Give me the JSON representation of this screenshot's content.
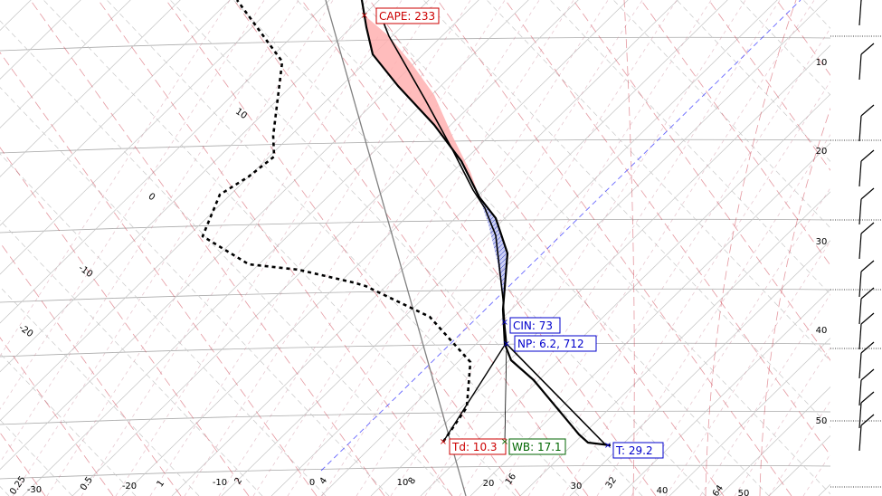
{
  "chart_data": {
    "type": "line",
    "chart_kind": "skew-T log-P diagram",
    "grid": true,
    "bottom_labels": [
      {
        "text": "-30",
        "value": -30
      },
      {
        "text": "-20",
        "value": -20
      },
      {
        "text": "-10",
        "value": -10
      },
      {
        "text": "0",
        "value": 0
      },
      {
        "text": "10",
        "value": 10
      },
      {
        "text": "20",
        "value": 20
      },
      {
        "text": "30",
        "value": 30
      },
      {
        "text": "40",
        "value": 40
      },
      {
        "text": "50",
        "value": 50
      }
    ],
    "mixing_ratio_labels": [
      "0.25",
      "0.5",
      "1",
      "2",
      "4",
      "8",
      "16",
      "32",
      "64"
    ],
    "isotherm_labels": [
      {
        "text": "10",
        "value": 10
      },
      {
        "text": "0",
        "value": 0
      },
      {
        "text": "-10",
        "value": -10
      },
      {
        "text": "-20",
        "value": -20
      }
    ],
    "height_labels": [
      "10",
      "20",
      "30",
      "40",
      "50"
    ],
    "series": [
      {
        "name": "T",
        "points": [
          [
            5.5,
            -2
          ],
          [
            -1,
            38
          ],
          [
            -9,
            128
          ],
          [
            -18,
            253
          ],
          [
            -28,
            332
          ],
          [
            -31,
            372
          ],
          [
            -21,
            402
          ],
          [
            -18,
            413
          ],
          [
            -7,
            440
          ],
          [
            -2,
            454
          ],
          [
            -5,
            471
          ]
        ]
      },
      {
        "name": "Td",
        "points": [
          [
            -10,
            -2
          ],
          [
            6,
            68
          ],
          [
            -5,
            172
          ],
          [
            -25,
            222
          ],
          [
            -52,
            260
          ],
          [
            -62,
            290
          ],
          [
            -75,
            315
          ],
          [
            -81,
            380
          ],
          [
            -81,
            425
          ],
          [
            -94,
            487
          ]
        ]
      },
      {
        "name": "parcel",
        "points": [
          [
            -23,
            -2
          ],
          [
            -16,
            40
          ],
          [
            -6,
            120
          ],
          [
            -8,
            217
          ],
          [
            -26,
            375
          ]
        ]
      }
    ],
    "annotations": [
      {
        "label": "CAPE: 233",
        "color": "#cc0000"
      },
      {
        "label": "CIN: 73",
        "color": "#0000cc"
      },
      {
        "label": "NP: 6.2, 712",
        "color": "#0000cc"
      },
      {
        "label": "Td: 10.3",
        "color": "#cc0000"
      },
      {
        "label": "WB: 17.1",
        "color": "#006600"
      },
      {
        "label": "T: 29.2",
        "color": "#0000cc"
      }
    ],
    "colors": {
      "temperature": "#000000",
      "dewpoint": "#000000",
      "cape_fill": "#ffb0b0",
      "cin_fill": "#aab0ee",
      "dry_adiabat": "#cc3344",
      "moist_adiabat": "#999999",
      "mixing_ratio": "#cc8899",
      "isobar": "#aaaaaa",
      "parcel_path": "#0000ff"
    }
  }
}
